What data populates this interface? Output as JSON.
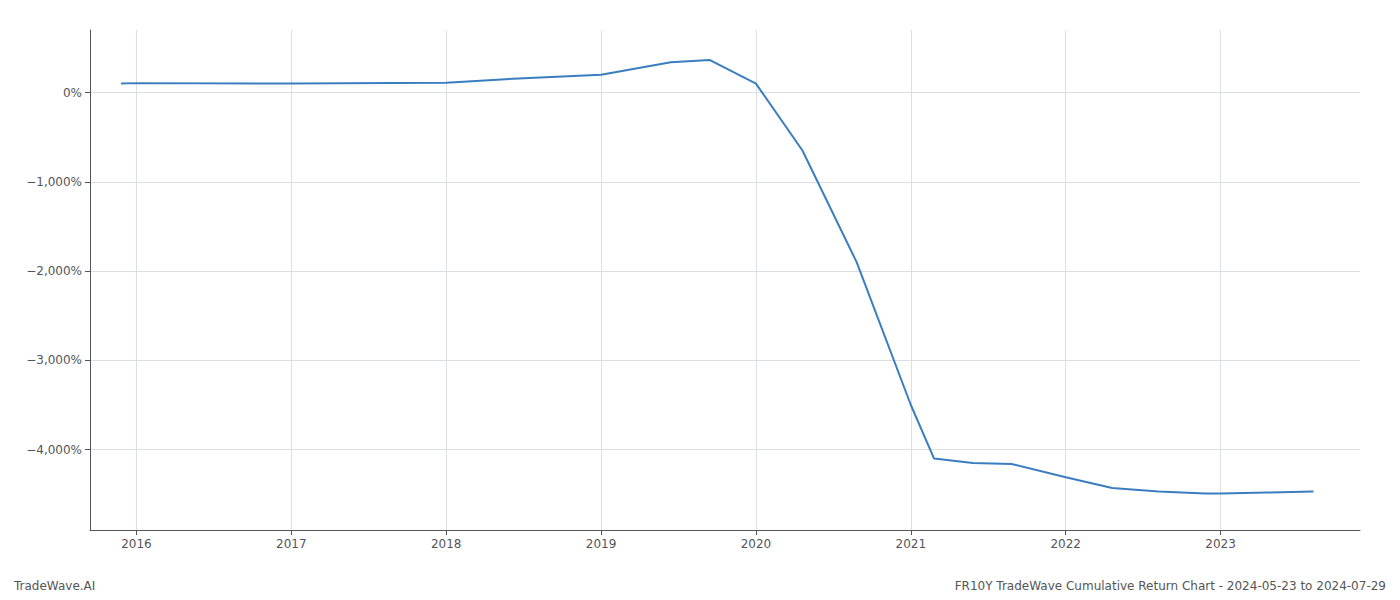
{
  "chart_data": {
    "type": "line",
    "annotations": [
      "TradeWave.AI",
      "FR10Y TradeWave Cumulative Return Chart - 2024-05-23 to 2024-07-29"
    ],
    "x": [
      2015.9,
      2016.0,
      2017.0,
      2018.0,
      2018.5,
      2019.0,
      2019.45,
      2019.7,
      2020.0,
      2020.3,
      2020.65,
      2021.0,
      2021.15,
      2021.4,
      2021.65,
      2022.0,
      2022.3,
      2022.6,
      2022.9,
      2023.0,
      2023.3,
      2023.6
    ],
    "values": [
      100,
      105,
      100,
      110,
      160,
      200,
      340,
      365,
      100,
      -650,
      -1900,
      -3500,
      -4100,
      -4150,
      -4160,
      -4310,
      -4430,
      -4470,
      -4490,
      -4490,
      -4480,
      -4470
    ],
    "color": "#3a7ebf",
    "xlim": [
      2015.7,
      2023.9
    ],
    "ylim": [
      -4900,
      700
    ],
    "xticks": [
      2016,
      2017,
      2018,
      2019,
      2020,
      2021,
      2022,
      2023
    ],
    "yticks": [
      {
        "value": 0,
        "label": "0%"
      },
      {
        "value": -1000,
        "label": "−1,000%"
      },
      {
        "value": -2000,
        "label": "−2,000%"
      },
      {
        "value": -3000,
        "label": "−3,000%"
      },
      {
        "value": -4000,
        "label": "−4,000%"
      }
    ],
    "grid": true
  }
}
